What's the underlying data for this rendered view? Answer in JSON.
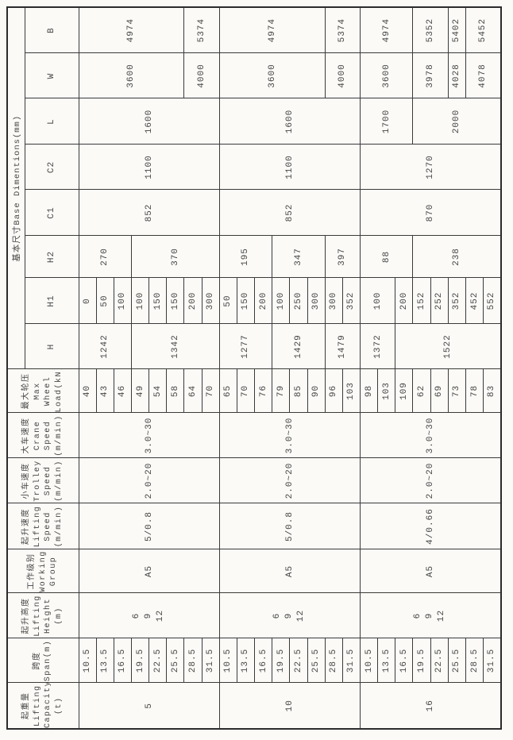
{
  "colors": {
    "background": "#fbfaf7",
    "grid_line": "#3a3a3a",
    "outer_border": "#2b2b2b",
    "text": "#454545"
  },
  "table": {
    "dimension_group_header": "基本尺寸Base Dimentions(mm)",
    "columns": [
      {
        "id": "capacity",
        "header": "起重量\nLifting\nCapacity\n(t)"
      },
      {
        "id": "span",
        "header": "跨度\nSpan(m)"
      },
      {
        "id": "height",
        "header": "起升高度\nLifting\nHeight\n(m)"
      },
      {
        "id": "work-group",
        "header": "工作级别\nWorking\nGroup"
      },
      {
        "id": "lifting-speed",
        "header": "起升速度\nLifting\nSpeed\n(m/min)"
      },
      {
        "id": "trolley-speed",
        "header": "小车速度\nTrolley\nSpeed\n(m/min)"
      },
      {
        "id": "crane-speed",
        "header": "大车速度\nCrane\nSpeed\n(m/min)"
      },
      {
        "id": "wheel-load",
        "header": "最大轮压\nMax\nWheel\nLoad(kN)"
      }
    ],
    "dim_headers": [
      "H",
      "H1",
      "H2",
      "C1",
      "C2",
      "L",
      "W",
      "B"
    ],
    "groups": [
      {
        "capacity": "5",
        "spans": [
          "10.5",
          "13.5",
          "16.5",
          "19.5",
          "22.5",
          "25.5",
          "28.5",
          "31.5"
        ],
        "height": "6\n9\n12",
        "work_group": "A5",
        "lifting_speed": "5/0.8",
        "trolley_speed": "2.0~20",
        "crane_speed": "3.0~30",
        "wheel_loads": [
          "40",
          "43",
          "46",
          "49",
          "54",
          "58",
          "64",
          "70"
        ],
        "H": [
          {
            "v": "1242",
            "rs": 3
          },
          {
            "v": "1342",
            "rs": 5
          }
        ],
        "H1": [
          {
            "v": "0"
          },
          {
            "v": "50"
          },
          {
            "v": "100"
          },
          {
            "v": "100"
          },
          {
            "v": "150"
          },
          {
            "v": "150"
          },
          {
            "v": "200"
          },
          {
            "v": "300"
          }
        ],
        "H2": [
          {
            "v": "270",
            "rs": 3
          },
          {
            "v": "370",
            "rs": 5
          }
        ],
        "C1": [
          {
            "v": "852",
            "rs": 8
          }
        ],
        "C2": [
          {
            "v": "1100",
            "rs": 8
          }
        ],
        "L": [
          {
            "v": "1600",
            "rs": 8
          }
        ],
        "W": [
          {
            "v": "3600",
            "rs": 6
          },
          {
            "v": "4000",
            "rs": 2
          }
        ],
        "B": [
          {
            "v": "4974",
            "rs": 6
          },
          {
            "v": "5374",
            "rs": 2
          }
        ]
      },
      {
        "capacity": "10",
        "spans": [
          "10.5",
          "13.5",
          "16.5",
          "19.5",
          "22.5",
          "25.5",
          "28.5",
          "31.5"
        ],
        "height": "6\n9\n12",
        "work_group": "A5",
        "lifting_speed": "5/0.8",
        "trolley_speed": "2.0~20",
        "crane_speed": "3.0~30",
        "wheel_loads": [
          "65",
          "70",
          "76",
          "79",
          "85",
          "90",
          "96",
          "103"
        ],
        "H": [
          {
            "v": "1277",
            "rs": 3
          },
          {
            "v": "1429",
            "rs": 3
          },
          {
            "v": "1479",
            "rs": 2
          }
        ],
        "H1": [
          {
            "v": "50"
          },
          {
            "v": "150"
          },
          {
            "v": "200"
          },
          {
            "v": "100"
          },
          {
            "v": "250"
          },
          {
            "v": "300"
          },
          {
            "v": "300"
          },
          {
            "v": "352"
          }
        ],
        "H2": [
          {
            "v": "195",
            "rs": 3
          },
          {
            "v": "347",
            "rs": 3
          },
          {
            "v": "397",
            "rs": 2
          }
        ],
        "C1": [
          {
            "v": "852",
            "rs": 8
          }
        ],
        "C2": [
          {
            "v": "1100",
            "rs": 8
          }
        ],
        "L": [
          {
            "v": "1600",
            "rs": 8
          }
        ],
        "W": [
          {
            "v": "3600",
            "rs": 6
          },
          {
            "v": "4000",
            "rs": 2
          }
        ],
        "B": [
          {
            "v": "4974",
            "rs": 6
          },
          {
            "v": "5374",
            "rs": 2
          }
        ]
      },
      {
        "capacity": "16",
        "spans": [
          "10.5",
          "13.5",
          "16.5",
          "19.5",
          "22.5",
          "25.5",
          "28.5",
          "31.5"
        ],
        "height": "6\n9\n12",
        "work_group": "A5",
        "lifting_speed": "4/0.66",
        "trolley_speed": "2.0~20",
        "crane_speed": "3.0~30",
        "wheel_loads": [
          "98",
          "103",
          "109",
          "62",
          "69",
          "73",
          "78",
          "83"
        ],
        "H": [
          {
            "v": "1372",
            "rs": 2
          },
          {
            "v": "1522",
            "rs": 6
          }
        ],
        "H1": [
          {
            "v": "100",
            "rs": 2
          },
          {
            "v": "200"
          },
          {
            "v": "152"
          },
          {
            "v": "252"
          },
          {
            "v": "352"
          },
          {
            "v": "452"
          },
          {
            "v": "552"
          }
        ],
        "H2": [
          {
            "v": "88",
            "rs": 3
          },
          {
            "v": "238",
            "rs": 5
          }
        ],
        "C1": [
          {
            "v": "870",
            "rs": 8
          }
        ],
        "C2": [
          {
            "v": "1270",
            "rs": 8
          }
        ],
        "L": [
          {
            "v": "1700",
            "rs": 3
          },
          {
            "v": "2000",
            "rs": 5
          }
        ],
        "W": [
          {
            "v": "3600",
            "rs": 3
          },
          {
            "v": "3978",
            "rs": 2
          },
          {
            "v": "4028"
          },
          {
            "v": "4078",
            "rs": 2
          }
        ],
        "B": [
          {
            "v": "4974",
            "rs": 3
          },
          {
            "v": "5352",
            "rs": 2
          },
          {
            "v": "5402"
          },
          {
            "v": "5452",
            "rs": 2
          }
        ]
      }
    ]
  }
}
